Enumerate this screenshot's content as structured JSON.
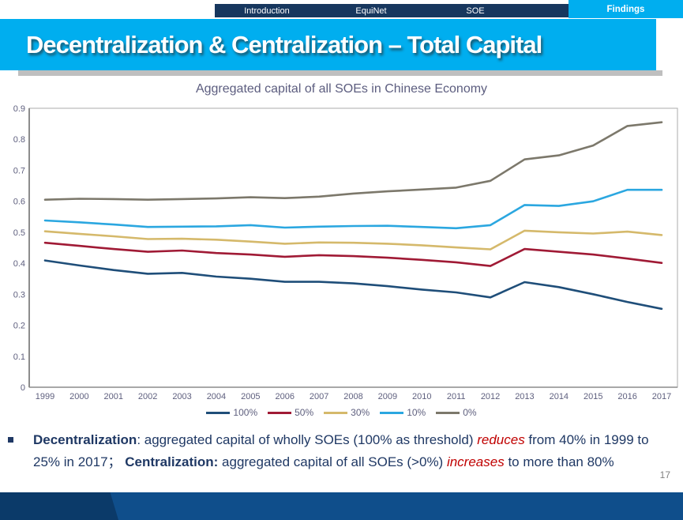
{
  "nav": {
    "tabs": [
      {
        "label": "Introduction"
      },
      {
        "label": "EquiNet"
      },
      {
        "label": "SOE"
      }
    ],
    "active_tab": {
      "label": "Findings"
    }
  },
  "header": {
    "title": "Decentralization & Centralization – Total Capital"
  },
  "colors": {
    "accent_blue": "#00AEEF",
    "nav_navy": "#17375E",
    "text_navy": "#1F3864",
    "emphasis_red": "#C00000",
    "footer_blue": "#0F4E8B",
    "footer_dark_blue": "#0B3A69",
    "axis_text": "#5E5F7E"
  },
  "chart_data": {
    "type": "line",
    "title": "Aggregated capital of all SOEs in Chinese Economy",
    "x": [
      1999,
      2000,
      2001,
      2002,
      2003,
      2004,
      2005,
      2006,
      2007,
      2008,
      2009,
      2010,
      2011,
      2012,
      2013,
      2014,
      2015,
      2016,
      2017
    ],
    "series": [
      {
        "name": "100%",
        "color": "#1F4E79",
        "values": [
          0.409,
          0.393,
          0.378,
          0.366,
          0.369,
          0.357,
          0.35,
          0.34,
          0.34,
          0.335,
          0.326,
          0.315,
          0.306,
          0.29,
          0.339,
          0.323,
          0.3,
          0.275,
          0.253
        ]
      },
      {
        "name": "50%",
        "color": "#A01A35",
        "values": [
          0.466,
          0.456,
          0.446,
          0.437,
          0.441,
          0.433,
          0.428,
          0.421,
          0.426,
          0.423,
          0.418,
          0.411,
          0.403,
          0.391,
          0.446,
          0.437,
          0.428,
          0.415,
          0.401
        ]
      },
      {
        "name": "30%",
        "color": "#D5B96B",
        "values": [
          0.503,
          0.495,
          0.487,
          0.478,
          0.479,
          0.476,
          0.47,
          0.463,
          0.467,
          0.466,
          0.463,
          0.458,
          0.451,
          0.445,
          0.505,
          0.5,
          0.496,
          0.502,
          0.491
        ]
      },
      {
        "name": "10%",
        "color": "#2BA7E0",
        "values": [
          0.538,
          0.532,
          0.525,
          0.517,
          0.518,
          0.519,
          0.523,
          0.515,
          0.518,
          0.52,
          0.521,
          0.517,
          0.513,
          0.523,
          0.588,
          0.585,
          0.6,
          0.637,
          0.637
        ]
      },
      {
        "name": "0%",
        "color": "#7C786B",
        "values": [
          0.605,
          0.608,
          0.607,
          0.605,
          0.607,
          0.609,
          0.613,
          0.61,
          0.615,
          0.625,
          0.632,
          0.638,
          0.644,
          0.666,
          0.735,
          0.748,
          0.78,
          0.843,
          0.855
        ]
      }
    ],
    "ylim": [
      0,
      0.9
    ],
    "yticks": [
      0,
      0.1,
      0.2,
      0.3,
      0.4,
      0.5,
      0.6,
      0.7,
      0.8,
      0.9
    ],
    "grid": false,
    "legend_position": "bottom"
  },
  "bullet": {
    "segments": [
      {
        "text": "Decentralization",
        "bold": true
      },
      {
        "text": ": aggregated capital of wholly SOEs (100% as threshold) "
      },
      {
        "text": "reduces",
        "emphasis": true
      },
      {
        "text": " from 40% in 1999 to 25% in 2017；  "
      },
      {
        "text": "Centralization:",
        "bold": true
      },
      {
        "text": " aggregated capital of all SOEs (>0%) "
      },
      {
        "text": "increases",
        "emphasis": true
      },
      {
        "text": " to more than 80%"
      }
    ]
  },
  "page_number": "17"
}
